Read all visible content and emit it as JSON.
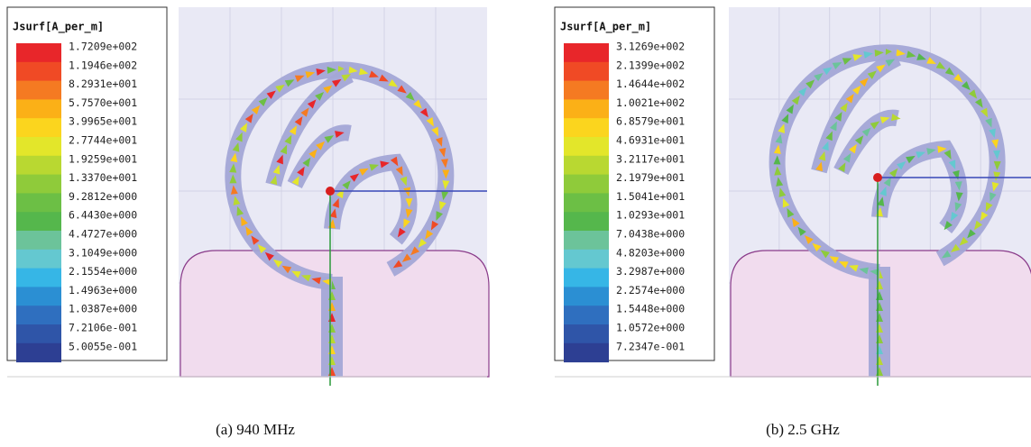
{
  "panels": [
    {
      "legend_title": "Jsurf[A_per_m]",
      "legend_labels": [
        "1.7209e+002",
        "1.1946e+002",
        "8.2931e+001",
        "5.7570e+001",
        "3.9965e+001",
        "2.7744e+001",
        "1.9259e+001",
        "1.3370e+001",
        "9.2812e+000",
        "6.4430e+000",
        "4.4727e+000",
        "3.1049e+000",
        "2.1554e+000",
        "1.4963e+000",
        "1.0387e+000",
        "7.2106e-001",
        "5.0055e-001"
      ],
      "caption": "(a) 940 MHz"
    },
    {
      "legend_title": "Jsurf[A_per_m]",
      "legend_labels": [
        "3.1269e+002",
        "2.1399e+002",
        "1.4644e+002",
        "1.0021e+002",
        "6.8579e+001",
        "4.6931e+001",
        "3.2117e+001",
        "2.1979e+001",
        "1.5041e+001",
        "1.0293e+001",
        "7.0438e+000",
        "4.8203e+000",
        "3.2987e+000",
        "2.2574e+000",
        "1.5448e+000",
        "1.0572e+000",
        "7.2347e-001"
      ],
      "caption": "(b) 2.5 GHz"
    }
  ]
}
